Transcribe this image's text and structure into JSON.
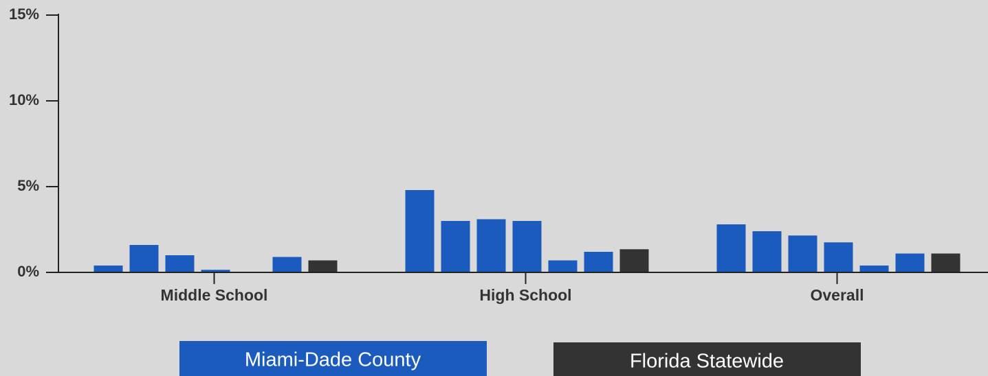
{
  "chart_data": {
    "type": "bar",
    "categories": [
      "Middle School",
      "High School",
      "Overall"
    ],
    "series": [
      {
        "name": "Miami-Dade County",
        "color": "#1a5bbd",
        "values": [
          [
            0.4,
            1.6,
            1.0,
            0.15,
            null,
            0.9
          ],
          [
            4.8,
            3.0,
            3.1,
            3.0,
            0.7,
            1.2
          ],
          [
            2.8,
            2.4,
            2.15,
            1.75,
            0.4,
            1.1
          ]
        ]
      },
      {
        "name": "Florida Statewide",
        "color": "#333333",
        "values": [
          0.7,
          1.35,
          1.1
        ]
      }
    ],
    "ylim": [
      0,
      15
    ],
    "yticks": [
      {
        "value": 0,
        "label": "0%"
      },
      {
        "value": 5,
        "label": "5%"
      },
      {
        "value": 10,
        "label": "10%"
      },
      {
        "value": 15,
        "label": "15%"
      }
    ],
    "legend": "bottom"
  }
}
